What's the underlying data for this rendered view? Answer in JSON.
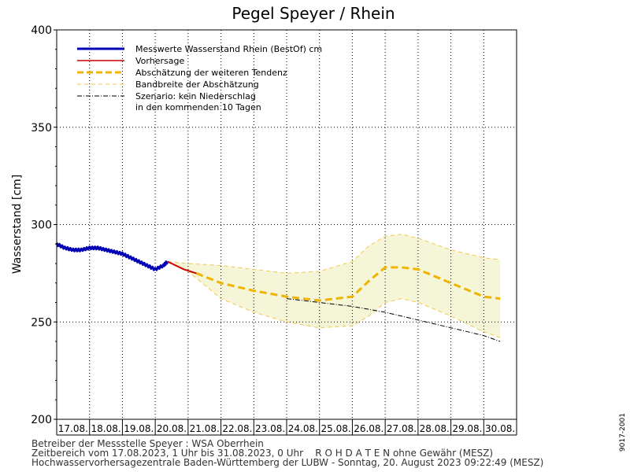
{
  "chart_data": {
    "type": "line",
    "title": "Pegel Speyer / Rhein",
    "ylabel": "Wasserstand [cm]",
    "xlabel": "",
    "ylim": [
      200,
      400
    ],
    "yticks": [
      200,
      250,
      300,
      350,
      400
    ],
    "x_range": [
      "17.08.2023 00:00",
      "31.08.2023 00:00"
    ],
    "x_ticks": [
      "17.08.",
      "18.08.",
      "19.08.",
      "20.08.",
      "21.08.",
      "22.08.",
      "23.08.",
      "24.08.",
      "25.08.",
      "26.08.",
      "27.08.",
      "28.08.",
      "29.08.",
      "30.08."
    ],
    "grid": true,
    "legend_placement": "top-left",
    "series": [
      {
        "name": "Messwerte Wasserstand Rhein (BestOf)   cm",
        "color": "#0000b4",
        "style": "solid-thick",
        "x": [
          "17.08.2023 00:00",
          "17.08.2023 06:00",
          "17.08.2023 12:00",
          "17.08.2023 18:00",
          "18.08.2023 00:00",
          "18.08.2023 06:00",
          "18.08.2023 12:00",
          "18.08.2023 18:00",
          "19.08.2023 00:00",
          "19.08.2023 06:00",
          "19.08.2023 12:00",
          "19.08.2023 18:00",
          "20.08.2023 00:00",
          "20.08.2023 06:00",
          "20.08.2023 09:00"
        ],
        "values": [
          290,
          288,
          287,
          287,
          288,
          288,
          287,
          286,
          285,
          283,
          281,
          279,
          277,
          279,
          281
        ]
      },
      {
        "name": "Vorhersage",
        "color": "#c80000",
        "style": "solid",
        "x": [
          "20.08.2023 09:00",
          "20.08.2023 15:00",
          "20.08.2023 21:00",
          "21.08.2023 06:00"
        ],
        "values": [
          281,
          279,
          277,
          275
        ]
      },
      {
        "name": "Abschätzung der weiteren Tendenz",
        "color": "#f0b400",
        "style": "dashed-thick",
        "x": [
          "21.08.2023 06:00",
          "22.08.2023 00:00",
          "23.08.2023 00:00",
          "24.08.2023 00:00",
          "25.08.2023 00:00",
          "26.08.2023 00:00",
          "26.08.2023 12:00",
          "27.08.2023 00:00",
          "27.08.2023 12:00",
          "28.08.2023 00:00",
          "29.08.2023 00:00",
          "30.08.2023 00:00",
          "30.08.2023 12:00"
        ],
        "values": [
          275,
          270,
          266,
          263,
          261,
          263,
          271,
          278,
          278,
          277,
          270,
          263,
          262
        ]
      },
      {
        "name": "Bandbreite der Abschätzung",
        "color": "#f0c850",
        "style": "dashed-thin",
        "x": [
          "20.08.2023 09:00",
          "21.08.2023 00:00",
          "22.08.2023 00:00",
          "23.08.2023 00:00",
          "24.08.2023 00:00",
          "25.08.2023 00:00",
          "26.08.2023 00:00",
          "26.08.2023 12:00",
          "27.08.2023 00:00",
          "27.08.2023 12:00",
          "28.08.2023 00:00",
          "29.08.2023 00:00",
          "30.08.2023 00:00",
          "30.08.2023 12:00"
        ],
        "upper": [
          281,
          280,
          279,
          277,
          275,
          276,
          281,
          289,
          294,
          295,
          293,
          287,
          283,
          282
        ],
        "lower": [
          281,
          276,
          262,
          255,
          250,
          247,
          248,
          253,
          260,
          262,
          260,
          253,
          245,
          242
        ],
        "fill": "#f5f5d7"
      },
      {
        "name": "Szenario: kein Niederschlag",
        "name_line2": "in den kommenden 10 Tagen",
        "color": "#000000",
        "style": "dashdot",
        "x": [
          "24.08.2023 00:00",
          "25.08.2023 00:00",
          "26.08.2023 00:00",
          "27.08.2023 00:00",
          "28.08.2023 00:00",
          "29.08.2023 00:00",
          "30.08.2023 00:00",
          "30.08.2023 12:00"
        ],
        "values": [
          262,
          260,
          258,
          255,
          251,
          247,
          243,
          240
        ]
      }
    ]
  },
  "footer": {
    "line1": "Betreiber der Messstelle Speyer : WSA Oberrhein",
    "line2": "Zeitbereich vom 17.08.2023, 1 Uhr bis 31.08.2023, 0 Uhr    R O H D A T E N ohne Gewähr (MESZ)",
    "line3": "Hochwasservorhersagezentrale Baden-Württemberg der LUBW - Sonntag, 20. August 2023 09:22:49 (MESZ)"
  },
  "side_code": "9017-2001"
}
